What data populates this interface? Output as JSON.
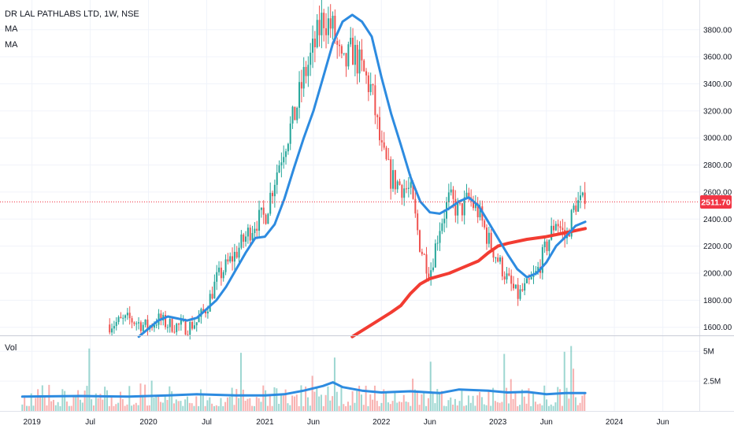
{
  "header": {
    "title": "DR LAL PATHLABS LTD, 1W, NSE",
    "indicator_1": "MA",
    "indicator_2": "MA"
  },
  "volume_pane": {
    "label": "Vol"
  },
  "price_tag": {
    "value": "2511.70",
    "color": "#f23645"
  },
  "colors": {
    "up": "#26a69a",
    "down": "#ef5350",
    "ma_fast": "#2d8be0",
    "ma_slow": "#f23c32",
    "grid": "#f0f3fa"
  },
  "chart_data": {
    "type": "candlestick",
    "title": "DR LAL PATHLABS LTD, 1W, NSE",
    "price_ticks": [
      "3800.00",
      "3600.00",
      "3400.00",
      "3200.00",
      "3000.00",
      "2800.00",
      "2600.00",
      "2400.00",
      "2200.00",
      "2000.00",
      "1800.00",
      "1600.00"
    ],
    "volume_ticks": [
      "5M",
      "2.5M"
    ],
    "x_ticks": [
      "2019",
      "Jul",
      "2020",
      "Jul",
      "2021",
      "Jun",
      "2022",
      "Jun",
      "2023",
      "Jun",
      "2024",
      "Jun"
    ],
    "last_price": 2511.7,
    "ylim": [
      1540,
      4020
    ],
    "price_path": [
      [
        "2019-09",
        1620
      ],
      [
        "2019-11",
        1660
      ],
      [
        "2020-01",
        1600
      ],
      [
        "2020-02",
        1660
      ],
      [
        "2020-03",
        1620
      ],
      [
        "2020-05",
        1600
      ],
      [
        "2020-06",
        1640
      ],
      [
        "2020-07",
        1750
      ],
      [
        "2020-08",
        1950
      ],
      [
        "2020-10",
        2150
      ],
      [
        "2020-12",
        2380
      ],
      [
        "2021-01",
        2420
      ],
      [
        "2021-02",
        2700
      ],
      [
        "2021-03",
        2950
      ],
      [
        "2021-04",
        3150
      ],
      [
        "2021-05",
        3450
      ],
      [
        "2021-06",
        3650
      ],
      [
        "2021-07",
        3900
      ],
      [
        "2021-08",
        3800
      ],
      [
        "2021-09",
        3500
      ],
      [
        "2021-10",
        3650
      ],
      [
        "2021-11",
        3500
      ],
      [
        "2021-12",
        3350
      ],
      [
        "2022-01",
        2900
      ],
      [
        "2022-02",
        2700
      ],
      [
        "2022-03",
        2650
      ],
      [
        "2022-04",
        2600
      ],
      [
        "2022-05",
        2200
      ],
      [
        "2022-06",
        2000
      ],
      [
        "2022-07",
        2350
      ],
      [
        "2022-08",
        2550
      ],
      [
        "2022-09",
        2450
      ],
      [
        "2022-10",
        2550
      ],
      [
        "2022-11",
        2450
      ],
      [
        "2022-12",
        2250
      ],
      [
        "2023-01",
        2100
      ],
      [
        "2023-02",
        1950
      ],
      [
        "2023-03",
        1830
      ],
      [
        "2023-04",
        1900
      ],
      [
        "2023-05",
        2000
      ],
      [
        "2023-06",
        2200
      ],
      [
        "2023-07",
        2400
      ],
      [
        "2023-08",
        2250
      ],
      [
        "2023-09",
        2520
      ],
      [
        "2023-10",
        2512
      ]
    ],
    "series": [
      {
        "type": "line",
        "points": [
          [
            "2019-12",
            1530
          ],
          [
            "2020-02",
            1650
          ],
          [
            "2020-03",
            1680
          ],
          [
            "2020-05",
            1650
          ],
          [
            "2020-06",
            1670
          ],
          [
            "2020-08",
            1800
          ],
          [
            "2020-09",
            1900
          ],
          [
            "2020-11",
            2150
          ],
          [
            "2020-12",
            2260
          ],
          [
            "2021-01",
            2270
          ],
          [
            "2021-02",
            2360
          ],
          [
            "2021-03",
            2550
          ],
          [
            "2021-04",
            2780
          ],
          [
            "2021-05",
            3000
          ],
          [
            "2021-06",
            3200
          ],
          [
            "2021-07",
            3450
          ],
          [
            "2021-08",
            3700
          ],
          [
            "2021-09",
            3860
          ],
          [
            "2021-10",
            3910
          ],
          [
            "2021-11",
            3860
          ],
          [
            "2021-12",
            3750
          ],
          [
            "2022-01",
            3450
          ],
          [
            "2022-02",
            3180
          ],
          [
            "2022-03",
            2950
          ],
          [
            "2022-04",
            2710
          ],
          [
            "2022-05",
            2530
          ],
          [
            "2022-06",
            2450
          ],
          [
            "2022-07",
            2440
          ],
          [
            "2022-08",
            2480
          ],
          [
            "2022-09",
            2530
          ],
          [
            "2022-10",
            2560
          ],
          [
            "2022-11",
            2500
          ],
          [
            "2022-12",
            2380
          ],
          [
            "2023-01",
            2260
          ],
          [
            "2023-02",
            2140
          ],
          [
            "2023-03",
            2030
          ],
          [
            "2023-04",
            1970
          ],
          [
            "2023-05",
            2000
          ],
          [
            "2023-06",
            2080
          ],
          [
            "2023-07",
            2200
          ],
          [
            "2023-08",
            2270
          ],
          [
            "2023-09",
            2350
          ],
          [
            "2023-10",
            2380
          ]
        ]
      },
      {
        "type": "line",
        "points": [
          [
            "2021-10",
            1530
          ],
          [
            "2021-12",
            1620
          ],
          [
            "2022-02",
            1710
          ],
          [
            "2022-03",
            1760
          ],
          [
            "2022-04",
            1850
          ],
          [
            "2022-05",
            1920
          ],
          [
            "2022-06",
            1960
          ],
          [
            "2022-08",
            2000
          ],
          [
            "2022-09",
            2030
          ],
          [
            "2022-11",
            2090
          ],
          [
            "2022-12",
            2150
          ],
          [
            "2023-01",
            2200
          ],
          [
            "2023-02",
            2220
          ],
          [
            "2023-04",
            2250
          ],
          [
            "2023-06",
            2270
          ],
          [
            "2023-08",
            2300
          ],
          [
            "2023-10",
            2330
          ]
        ]
      },
      {
        "type": "line",
        "points": [
          [
            "2018-12",
            1200000
          ],
          [
            "2019-06",
            1250000
          ],
          [
            "2019-11",
            1200000
          ],
          [
            "2020-03",
            1300000
          ],
          [
            "2020-06",
            1400000
          ],
          [
            "2020-10",
            1300000
          ],
          [
            "2021-01",
            1300000
          ],
          [
            "2021-03",
            1400000
          ],
          [
            "2021-05",
            1700000
          ],
          [
            "2021-07",
            2100000
          ],
          [
            "2021-08",
            2400000
          ],
          [
            "2021-09",
            2000000
          ],
          [
            "2021-11",
            1700000
          ],
          [
            "2022-01",
            1550000
          ],
          [
            "2022-04",
            1650000
          ],
          [
            "2022-07",
            1500000
          ],
          [
            "2022-09",
            1800000
          ],
          [
            "2022-12",
            1700000
          ],
          [
            "2023-02",
            1550000
          ],
          [
            "2023-04",
            1600000
          ],
          [
            "2023-06",
            1400000
          ],
          [
            "2023-08",
            1500000
          ],
          [
            "2023-10",
            1500000
          ]
        ]
      }
    ]
  }
}
